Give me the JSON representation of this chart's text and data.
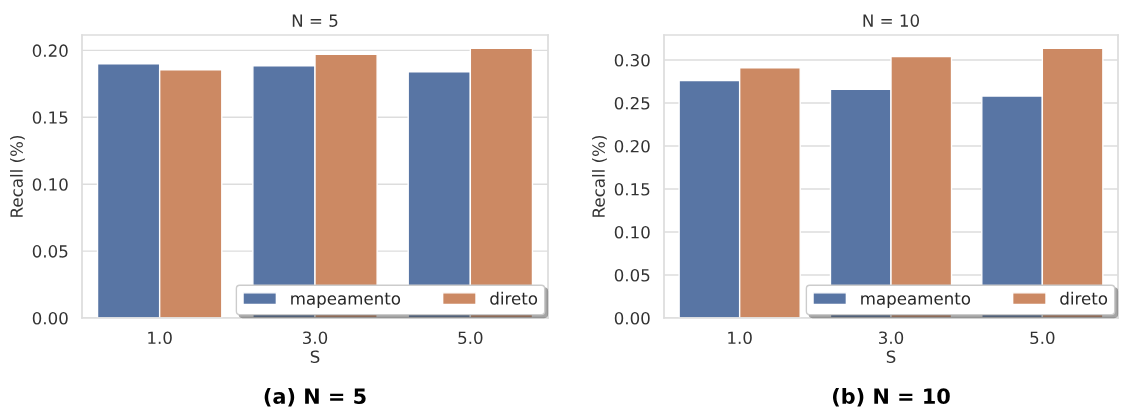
{
  "chart_data": [
    {
      "type": "bar",
      "title": "N = 5",
      "xlabel": "S",
      "ylabel": "Recall (%)",
      "categories": [
        "1.0",
        "3.0",
        "5.0"
      ],
      "series": [
        {
          "name": "mapeamento",
          "color": "#5875a4",
          "values": [
            0.19,
            0.1885,
            0.184
          ]
        },
        {
          "name": "direto",
          "color": "#cc8963",
          "values": [
            0.1855,
            0.197,
            0.2015
          ]
        }
      ],
      "ylim": [
        0,
        0.2115
      ],
      "yticks": [
        {
          "value": 0,
          "label": "0.00"
        },
        {
          "value": 0.05,
          "label": "0.05"
        },
        {
          "value": 0.1,
          "label": "0.10"
        },
        {
          "value": 0.15,
          "label": "0.15"
        },
        {
          "value": 0.2,
          "label": "0.20"
        }
      ],
      "grid": "y",
      "legend": "bottom right",
      "annotations": [
        "(a) N = 5"
      ]
    },
    {
      "type": "bar",
      "title": "N = 10",
      "xlabel": "S",
      "ylabel": "Recall (%)",
      "categories": [
        "1.0",
        "3.0",
        "5.0"
      ],
      "series": [
        {
          "name": "mapeamento",
          "color": "#5875a4",
          "values": [
            0.276,
            0.266,
            0.258
          ]
        },
        {
          "name": "direto",
          "color": "#cc8963",
          "values": [
            0.291,
            0.304,
            0.3135
          ]
        }
      ],
      "ylim": [
        0,
        0.329
      ],
      "yticks": [
        {
          "value": 0,
          "label": "0.00"
        },
        {
          "value": 0.05,
          "label": "0.05"
        },
        {
          "value": 0.1,
          "label": "0.10"
        },
        {
          "value": 0.15,
          "label": "0.15"
        },
        {
          "value": 0.2,
          "label": "0.20"
        },
        {
          "value": 0.25,
          "label": "0.25"
        },
        {
          "value": 0.3,
          "label": "0.30"
        }
      ],
      "grid": "y",
      "legend": "bottom right",
      "annotations": [
        "(b) N = 10"
      ]
    }
  ]
}
